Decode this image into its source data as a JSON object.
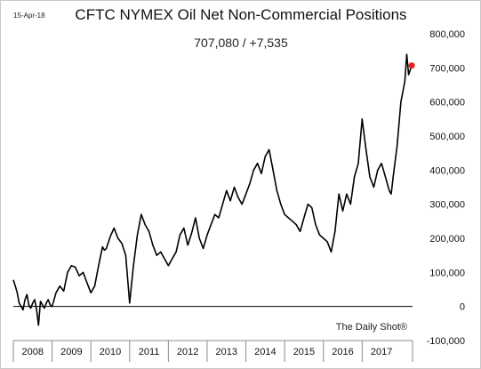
{
  "header": {
    "date": "15-Apr-18",
    "title": "CFTC NYMEX Oil Net Non-Commercial Positions",
    "subtitle": "707,080  /  +7,535"
  },
  "footer": {
    "source": "The Daily Shot®"
  },
  "colors": {
    "line": "#000000",
    "last_point": "#e8201f",
    "zero_line": "#000000",
    "axis": "#8c8c8c"
  },
  "chart_data": {
    "type": "line",
    "title": "CFTC NYMEX Oil Net Non-Commercial Positions",
    "xlabel": "",
    "ylabel": "",
    "x_range": [
      2008.0,
      2018.3
    ],
    "ylim": [
      -100000,
      800000
    ],
    "yticks": [
      -100000,
      0,
      100000,
      200000,
      300000,
      400000,
      500000,
      600000,
      700000,
      800000
    ],
    "ytick_labels": [
      "-100,000",
      "0",
      "100,000",
      "200,000",
      "300,000",
      "400,000",
      "500,000",
      "600,000",
      "700,000",
      "800,000"
    ],
    "xtick_labels": [
      "2008",
      "2009",
      "2010",
      "2011",
      "2012",
      "2013",
      "2014",
      "2015",
      "2016",
      "2017"
    ],
    "grid": false,
    "y_axis_side": "right",
    "last_value": 707080,
    "weekly_change": 7535,
    "series": [
      {
        "x": [
          2008.0,
          2008.05,
          2008.1,
          2008.15,
          2008.2,
          2008.25,
          2008.3,
          2008.35,
          2008.4,
          2008.45,
          2008.5,
          2008.55,
          2008.6,
          2008.65,
          2008.7,
          2008.75,
          2008.8,
          2008.85,
          2008.9,
          2008.95,
          2009.0,
          2009.1,
          2009.2,
          2009.3,
          2009.4,
          2009.5,
          2009.6,
          2009.7,
          2009.8,
          2009.9,
          2010.0,
          2010.1,
          2010.2,
          2010.3,
          2010.35,
          2010.4,
          2010.5,
          2010.6,
          2010.7,
          2010.8,
          2010.9,
          2011.0,
          2011.1,
          2011.2,
          2011.3,
          2011.4,
          2011.5,
          2011.6,
          2011.7,
          2011.8,
          2011.9,
          2012.0,
          2012.1,
          2012.2,
          2012.3,
          2012.4,
          2012.5,
          2012.6,
          2012.7,
          2012.8,
          2012.9,
          2013.0,
          2013.1,
          2013.2,
          2013.3,
          2013.4,
          2013.5,
          2013.6,
          2013.7,
          2013.8,
          2013.9,
          2014.0,
          2014.1,
          2014.2,
          2014.3,
          2014.4,
          2014.5,
          2014.6,
          2014.7,
          2014.8,
          2014.9,
          2015.0,
          2015.1,
          2015.2,
          2015.3,
          2015.4,
          2015.5,
          2015.6,
          2015.7,
          2015.8,
          2015.9,
          2016.0,
          2016.1,
          2016.2,
          2016.3,
          2016.4,
          2016.5,
          2016.6,
          2016.7,
          2016.8,
          2016.9,
          2017.0,
          2017.1,
          2017.2,
          2017.3,
          2017.4,
          2017.5,
          2017.6,
          2017.7,
          2017.75,
          2017.8,
          2017.9,
          2018.0,
          2018.05,
          2018.1,
          2018.15,
          2018.2,
          2018.28
        ],
        "y": [
          78000,
          60000,
          40000,
          10000,
          0,
          -10000,
          20000,
          35000,
          5000,
          -5000,
          10000,
          20000,
          -10000,
          -55000,
          15000,
          5000,
          -5000,
          10000,
          20000,
          5000,
          0,
          40000,
          60000,
          45000,
          100000,
          120000,
          115000,
          90000,
          100000,
          70000,
          40000,
          60000,
          120000,
          175000,
          165000,
          170000,
          205000,
          230000,
          200000,
          185000,
          150000,
          10000,
          120000,
          210000,
          270000,
          240000,
          220000,
          180000,
          150000,
          160000,
          140000,
          120000,
          140000,
          160000,
          210000,
          230000,
          180000,
          215000,
          260000,
          200000,
          170000,
          210000,
          240000,
          270000,
          260000,
          300000,
          340000,
          310000,
          350000,
          320000,
          300000,
          330000,
          360000,
          400000,
          420000,
          390000,
          440000,
          460000,
          400000,
          340000,
          300000,
          270000,
          260000,
          250000,
          240000,
          220000,
          260000,
          300000,
          290000,
          240000,
          210000,
          200000,
          190000,
          160000,
          220000,
          330000,
          280000,
          330000,
          300000,
          380000,
          420000,
          550000,
          460000,
          380000,
          350000,
          400000,
          420000,
          380000,
          340000,
          330000,
          380000,
          470000,
          600000,
          630000,
          660000,
          740000,
          680000,
          707080
        ]
      }
    ]
  }
}
